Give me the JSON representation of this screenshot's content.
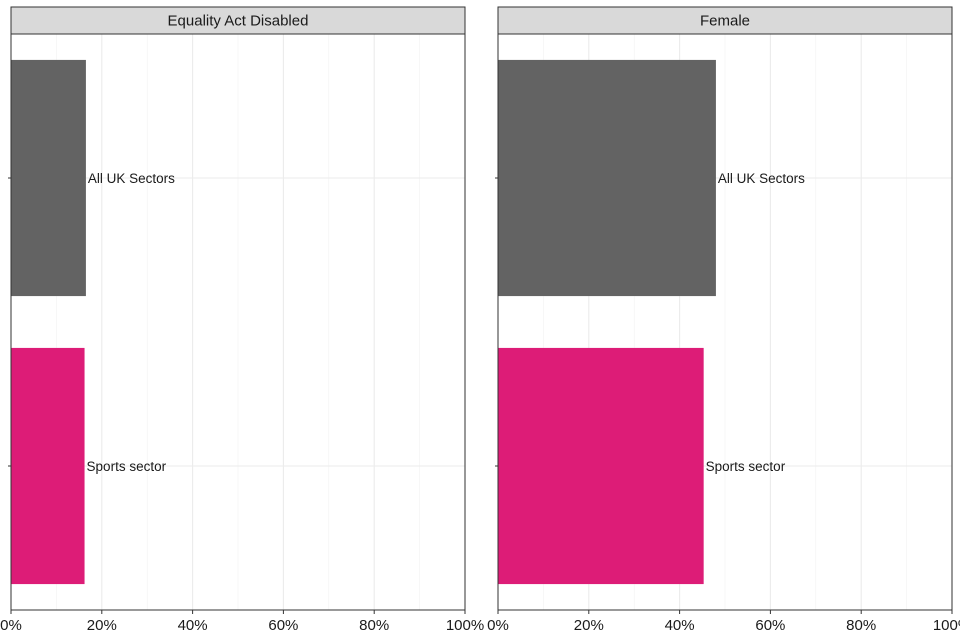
{
  "chart_data": {
    "type": "bar",
    "orientation": "horizontal",
    "categories": [
      "All UK Sectors",
      "Sports sector"
    ],
    "xlim": [
      0,
      100
    ],
    "x_ticks": [
      "0%",
      "20%",
      "40%",
      "60%",
      "80%",
      "100%"
    ],
    "x_tick_values": [
      0,
      20,
      40,
      60,
      80,
      100
    ],
    "grid": true,
    "colors": {
      "All UK Sectors": "#636363",
      "Sports sector": "#dd1c77"
    },
    "panels": [
      {
        "title": "Equality Act Disabled",
        "values": [
          16.5,
          16.2
        ]
      },
      {
        "title": "Female",
        "values": [
          48.0,
          45.3
        ]
      }
    ]
  }
}
